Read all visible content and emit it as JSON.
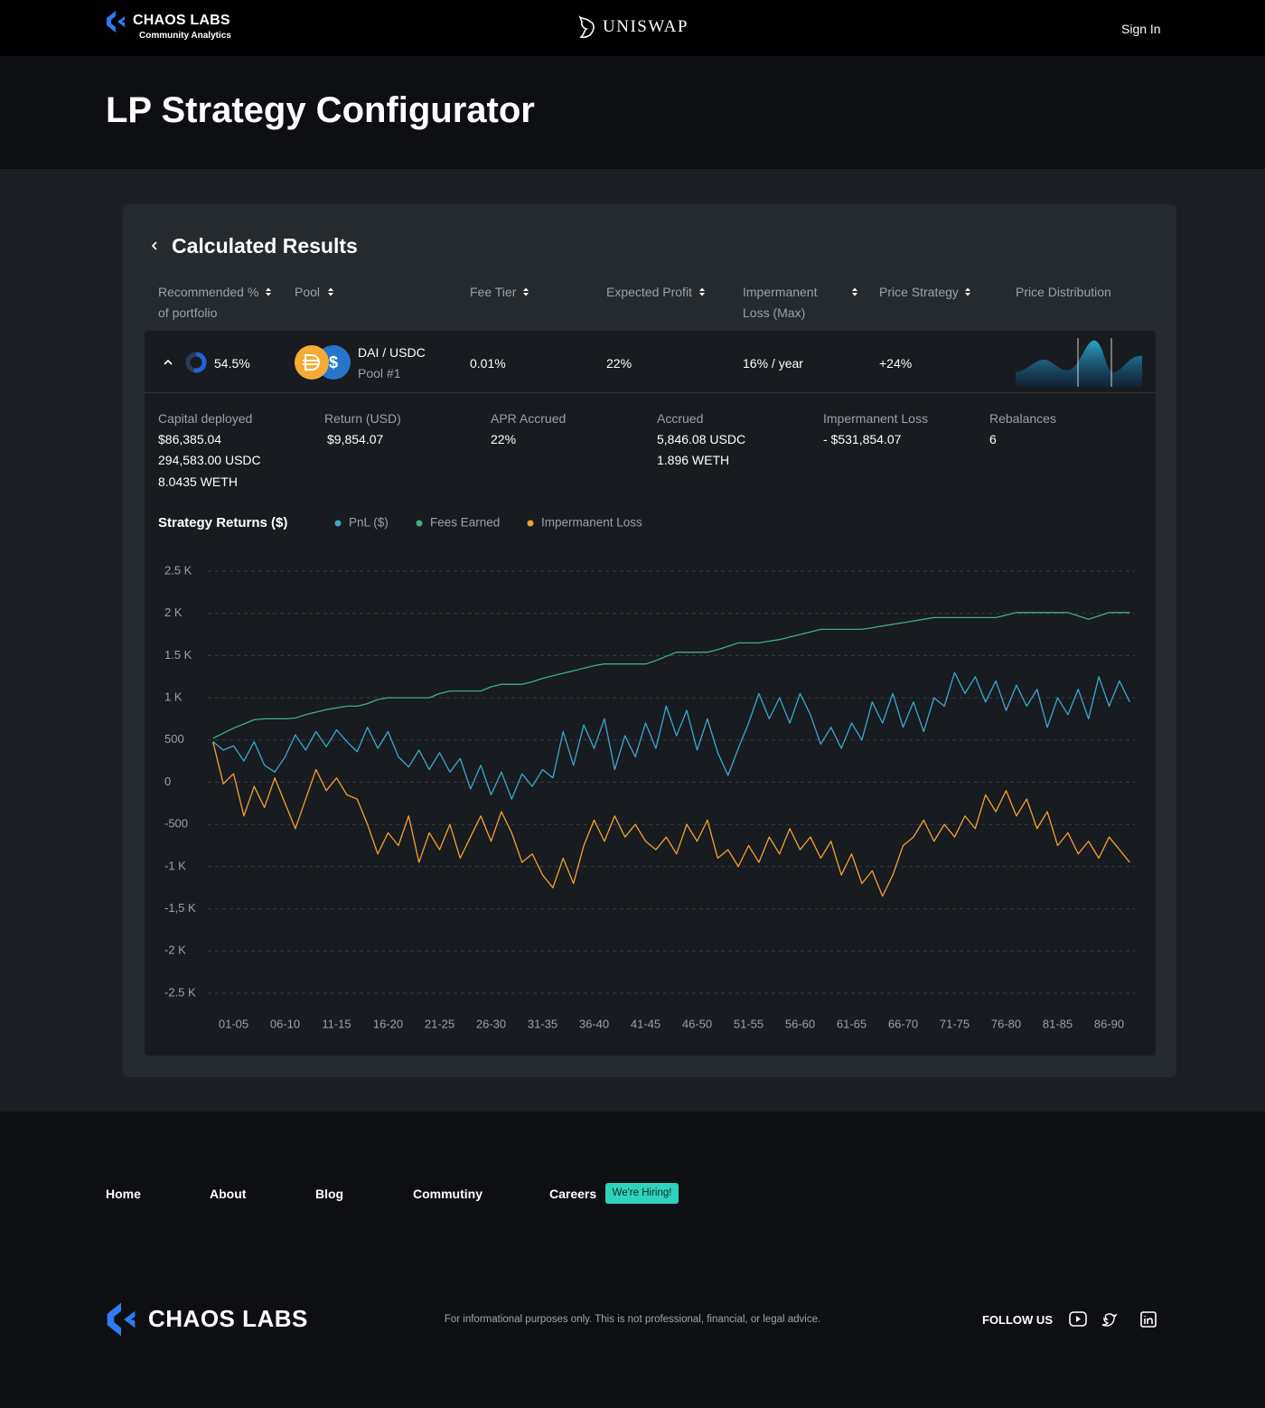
{
  "header": {
    "brand": "CHAOS LABS",
    "brand_sub": "Community Analytics",
    "partner": "UNISWAP",
    "sign_in": "Sign In"
  },
  "page_title": "LP Strategy Configurator",
  "results": {
    "title": "Calculated Results",
    "columns": [
      "Recommended % of portfolio",
      "Pool",
      "Fee Tier",
      "Expected Profit",
      "Impermanent Loss (Max)",
      "Price Strategy",
      "Price Distribution"
    ],
    "row": {
      "percent": "54.5%",
      "pool": "DAI / USDC",
      "pool_id": "Pool #1",
      "fee_tier": "0.01%",
      "expected_profit": "22%",
      "impermanent_loss": "16% / year",
      "price_strategy": "+24%"
    },
    "details": [
      {
        "label": "Capital deployed",
        "lines": [
          "$86,385.04",
          "294,583.00 USDC",
          "8.0435 WETH"
        ]
      },
      {
        "label": "Return (USD)",
        "lines": [
          "$9,854.07"
        ]
      },
      {
        "label": "APR Accrued",
        "lines": [
          "22%"
        ]
      },
      {
        "label": "Accrued",
        "lines": [
          "5,846.08 USDC",
          "1.896 WETH"
        ]
      },
      {
        "label": "Impermanent Loss",
        "lines": [
          "- $531,854.07"
        ]
      },
      {
        "label": "Rebalances",
        "lines": [
          "6"
        ]
      }
    ]
  },
  "chart_data": {
    "type": "line",
    "title": "Strategy Returns ($)",
    "categories": [
      null,
      null,
      "01-05",
      null,
      null,
      null,
      null,
      "06-10",
      null,
      null,
      null,
      null,
      "11-15",
      null,
      null,
      null,
      null,
      "16-20",
      null,
      null,
      null,
      null,
      "21-25",
      null,
      null,
      null,
      null,
      "26-30",
      null,
      null,
      null,
      null,
      "31-35",
      null,
      null,
      null,
      null,
      "36-40",
      null,
      null,
      null,
      null,
      "41-45",
      null,
      null,
      null,
      null,
      "46-50",
      null,
      null,
      null,
      null,
      "51-55",
      null,
      null,
      null,
      null,
      "56-60",
      null,
      null,
      null,
      null,
      "61-65",
      null,
      null,
      null,
      null,
      "66-70",
      null,
      null,
      null,
      null,
      "71-75",
      null,
      null,
      null,
      null,
      "76-80",
      null,
      null,
      null,
      null,
      "81-85",
      null,
      null,
      null,
      null,
      "86-90",
      null,
      null
    ],
    "series": [
      {
        "name": "PnL ($)",
        "color": "#3aa8cc",
        "values": [
          480,
          380,
          430,
          250,
          480,
          200,
          120,
          300,
          560,
          380,
          600,
          420,
          620,
          480,
          360,
          650,
          400,
          600,
          300,
          180,
          380,
          150,
          350,
          120,
          280,
          -80,
          200,
          -150,
          120,
          -200,
          100,
          -50,
          150,
          50,
          600,
          200,
          680,
          400,
          750,
          150,
          550,
          300,
          700,
          400,
          900,
          550,
          850,
          380,
          750,
          350,
          80,
          400,
          700,
          1050,
          750,
          1000,
          700,
          1050,
          800,
          450,
          650,
          400,
          700,
          500,
          950,
          700,
          1050,
          650,
          950,
          600,
          1000,
          900,
          1300,
          1050,
          1250,
          950,
          1200,
          850,
          1150,
          900,
          1100,
          650,
          1000,
          800,
          1100,
          750,
          1250,
          900,
          1200,
          950
        ]
      },
      {
        "name": "Fees Earned",
        "color": "#3fae80",
        "values": [
          520,
          580,
          640,
          690,
          740,
          750,
          750,
          750,
          760,
          800,
          830,
          860,
          880,
          900,
          900,
          930,
          980,
          1000,
          1000,
          1000,
          1000,
          1000,
          1050,
          1080,
          1080,
          1080,
          1080,
          1130,
          1160,
          1160,
          1160,
          1190,
          1230,
          1260,
          1290,
          1320,
          1350,
          1380,
          1400,
          1400,
          1400,
          1400,
          1400,
          1440,
          1490,
          1540,
          1540,
          1540,
          1540,
          1570,
          1610,
          1650,
          1650,
          1650,
          1670,
          1690,
          1720,
          1750,
          1780,
          1810,
          1810,
          1810,
          1810,
          1810,
          1830,
          1850,
          1870,
          1890,
          1910,
          1930,
          1950,
          1950,
          1950,
          1950,
          1950,
          1950,
          1950,
          1980,
          2010,
          2010,
          2010,
          2010,
          2010,
          2010,
          1970,
          1930,
          1970,
          2010,
          2010,
          2010
        ]
      },
      {
        "name": "Impermanent Loss",
        "color": "#f0a232",
        "values": [
          480,
          -20,
          100,
          -400,
          -50,
          -300,
          50,
          -250,
          -550,
          -200,
          150,
          -100,
          50,
          -150,
          -200,
          -500,
          -850,
          -600,
          -750,
          -400,
          -950,
          -600,
          -800,
          -500,
          -900,
          -650,
          -400,
          -700,
          -350,
          -600,
          -950,
          -850,
          -1100,
          -1250,
          -900,
          -1200,
          -750,
          -450,
          -700,
          -400,
          -650,
          -500,
          -700,
          -800,
          -650,
          -850,
          -500,
          -700,
          -450,
          -900,
          -800,
          -1000,
          -750,
          -950,
          -650,
          -850,
          -550,
          -800,
          -650,
          -900,
          -700,
          -1100,
          -850,
          -1200,
          -1050,
          -1350,
          -1100,
          -750,
          -650,
          -450,
          -700,
          -500,
          -650,
          -400,
          -550,
          -150,
          -350,
          -100,
          -400,
          -200,
          -550,
          -350,
          -750,
          -600,
          -850,
          -700,
          -900,
          -650,
          -800,
          -950
        ]
      }
    ],
    "ylim": [
      -2500,
      2500
    ],
    "yticks": [
      {
        "value": 2500,
        "label": "2.5 K"
      },
      {
        "value": 2000,
        "label": "2 K"
      },
      {
        "value": 1500,
        "label": "1.5 K"
      },
      {
        "value": 1000,
        "label": "1 K"
      },
      500,
      0,
      -500,
      {
        "value": -1000,
        "label": "-1 K"
      },
      {
        "value": -1500,
        "label": "-1,5 K"
      },
      {
        "value": -2000,
        "label": "-2 K"
      },
      {
        "value": -2500,
        "label": "-2.5 K"
      }
    ],
    "grid": true
  },
  "footer": {
    "nav": [
      "Home",
      "About",
      "Blog",
      "Commutiny",
      "Careers"
    ],
    "hiring": "We're Hiring!",
    "brand": "CHAOS LABS",
    "disclaimer": "For informational purposes only. This is not professional, financial, or legal advice.",
    "follow": "FOLLOW US"
  }
}
